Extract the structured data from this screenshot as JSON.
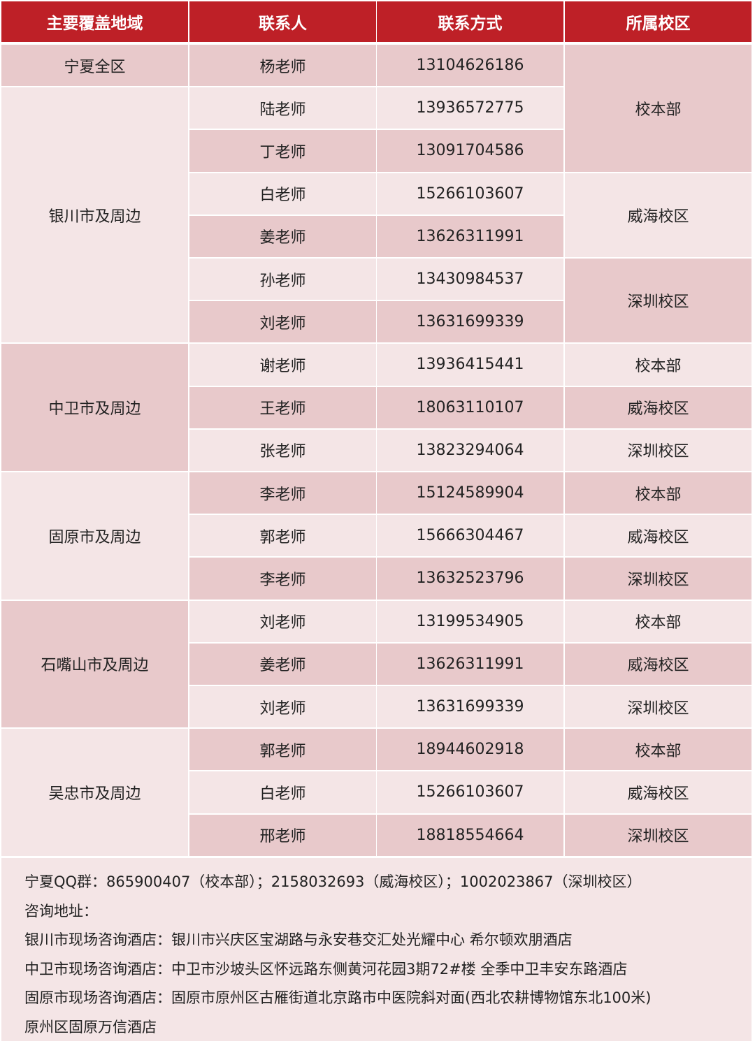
{
  "colors": {
    "header": "#be2027",
    "row_dark": "#e8c9cb",
    "row_light": "#f4e5e6"
  },
  "headers": [
    "主要覆盖地域",
    "联系人",
    "联系方式",
    "所属校区"
  ],
  "regions": [
    {
      "name": "宁夏全区",
      "span": 1,
      "shade": "dark"
    },
    {
      "name": "银川市及周边",
      "span": 6,
      "shade": "light"
    },
    {
      "name": "中卫市及周边",
      "span": 3,
      "shade": "dark"
    },
    {
      "name": "固原市及周边",
      "span": 3,
      "shade": "light"
    },
    {
      "name": "石嘴山市及周边",
      "span": 3,
      "shade": "dark"
    },
    {
      "name": "吴忠市及周边",
      "span": 3,
      "shade": "light"
    }
  ],
  "contacts": [
    {
      "name": "杨老师",
      "phone": "13104626186"
    },
    {
      "name": "陆老师",
      "phone": "13936572775"
    },
    {
      "name": "丁老师",
      "phone": "13091704586"
    },
    {
      "name": "白老师",
      "phone": "15266103607"
    },
    {
      "name": "姜老师",
      "phone": "13626311991"
    },
    {
      "name": "孙老师",
      "phone": "13430984537"
    },
    {
      "name": "刘老师",
      "phone": "13631699339"
    },
    {
      "name": "谢老师",
      "phone": "13936415441"
    },
    {
      "name": "王老师",
      "phone": "18063110107"
    },
    {
      "name": "张老师",
      "phone": "13823294064"
    },
    {
      "name": "李老师",
      "phone": "15124589904"
    },
    {
      "name": "郭老师",
      "phone": "15666304467"
    },
    {
      "name": "李老师",
      "phone": "13632523796"
    },
    {
      "name": "刘老师",
      "phone": "13199534905"
    },
    {
      "name": "姜老师",
      "phone": "13626311991"
    },
    {
      "name": "刘老师",
      "phone": "13631699339"
    },
    {
      "name": "郭老师",
      "phone": "18944602918"
    },
    {
      "name": "白老师",
      "phone": "15266103607"
    },
    {
      "name": "邢老师",
      "phone": "18818554664"
    }
  ],
  "campuses": [
    {
      "name": "校本部",
      "span": 3,
      "shade": "dark"
    },
    {
      "name": "威海校区",
      "span": 2,
      "shade": "light"
    },
    {
      "name": "深圳校区",
      "span": 2,
      "shade": "dark"
    },
    {
      "name": "校本部",
      "span": 1,
      "shade": "light"
    },
    {
      "name": "威海校区",
      "span": 1,
      "shade": "dark"
    },
    {
      "name": "深圳校区",
      "span": 1,
      "shade": "light"
    },
    {
      "name": "校本部",
      "span": 1,
      "shade": "dark"
    },
    {
      "name": "威海校区",
      "span": 1,
      "shade": "light"
    },
    {
      "name": "深圳校区",
      "span": 1,
      "shade": "dark"
    },
    {
      "name": "校本部",
      "span": 1,
      "shade": "light"
    },
    {
      "name": "威海校区",
      "span": 1,
      "shade": "dark"
    },
    {
      "name": "深圳校区",
      "span": 1,
      "shade": "light"
    },
    {
      "name": "校本部",
      "span": 1,
      "shade": "dark"
    },
    {
      "name": "威海校区",
      "span": 1,
      "shade": "light"
    },
    {
      "name": "深圳校区",
      "span": 1,
      "shade": "dark"
    }
  ],
  "footer": [
    "宁夏QQ群：865900407（校本部）；2158032693（威海校区）；1002023867（深圳校区）",
    "咨询地址：",
    "银川市现场咨询酒店：银川市兴庆区宝湖路与永安巷交汇处光耀中心 希尔顿欢朋酒店",
    "中卫市现场咨询酒店：中卫市沙坡头区怀远路东侧黄河花园3期72#楼 全季中卫丰安东路酒店",
    "固原市现场咨询酒店：固原市原州区古雁街道北京路市中医院斜对面(西北农耕博物馆东北100米)",
    "原州区固原万信酒店"
  ]
}
